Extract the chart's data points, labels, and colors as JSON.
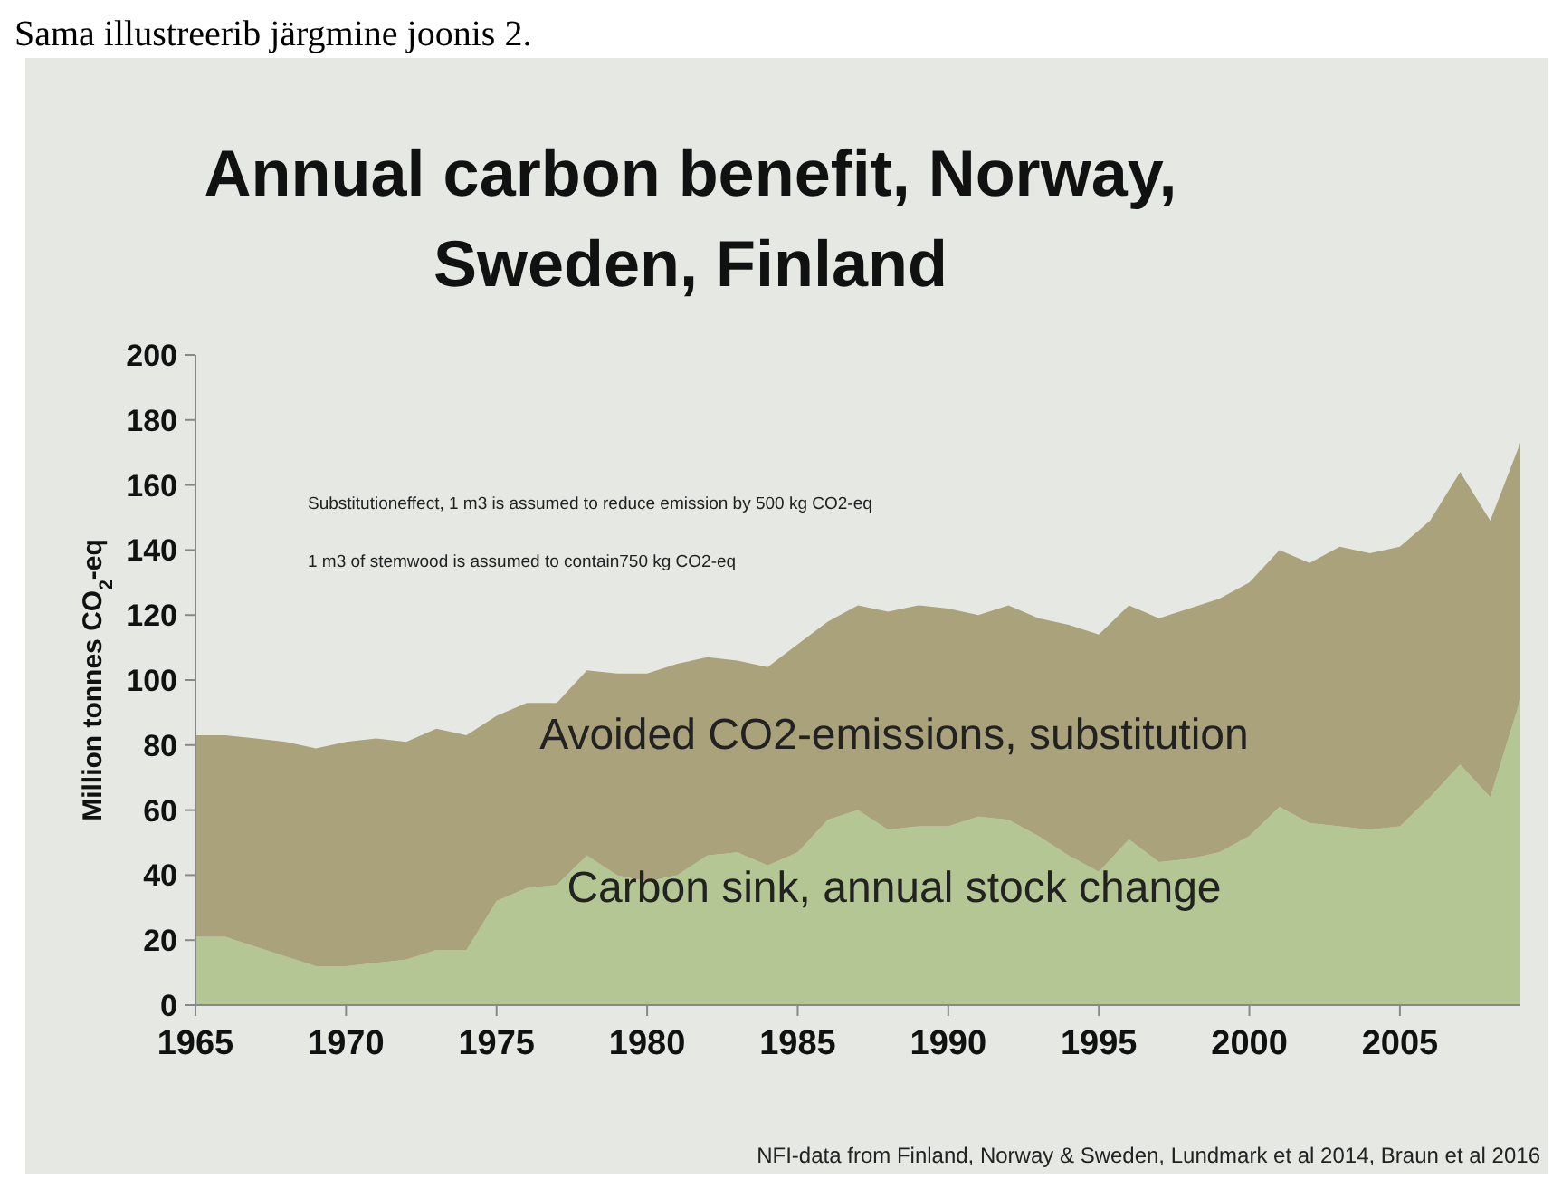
{
  "chart_data": {
    "type": "area",
    "stacked": true,
    "title": "Annual carbon benefit, Norway, Sweden, Finland",
    "ylabel": "Million tonnes CO$_{2}$-eq",
    "annotations": [
      "Sama illustreerib järgmine joonis 2.",
      "Substitutioneffect, 1 m3 is assumed to reduce emission by 500 kg CO2-eq",
      "1 m3 of stemwood is assumed to contain750 kg CO2-eq",
      "NFI-data from Finland, Norway & Sweden, Lundmark et al 2014, Braun et al 2016"
    ],
    "x": [
      1965,
      1966,
      1967,
      1968,
      1969,
      1970,
      1971,
      1972,
      1973,
      1974,
      1975,
      1976,
      1977,
      1978,
      1979,
      1980,
      1981,
      1982,
      1983,
      1984,
      1985,
      1986,
      1987,
      1988,
      1989,
      1990,
      1991,
      1992,
      1993,
      1994,
      1995,
      1996,
      1997,
      1998,
      1999,
      2000,
      2001,
      2002,
      2003,
      2004,
      2005,
      2006,
      2007,
      2008,
      2009
    ],
    "series": [
      {
        "name": "Carbon sink, annual stock change",
        "color": "#b3c693",
        "values": [
          21,
          21,
          18,
          15,
          12,
          12,
          13,
          14,
          17,
          17,
          32,
          36,
          37,
          46,
          40,
          38,
          40,
          46,
          47,
          43,
          47,
          57,
          60,
          54,
          55,
          55,
          58,
          57,
          52,
          46,
          41,
          51,
          44,
          45,
          47,
          52,
          61,
          56,
          55,
          54,
          55,
          64,
          74,
          64,
          94
        ]
      },
      {
        "name": "Avoided CO2-emissions, substitution",
        "color": "#aaa27a",
        "values": [
          62,
          62,
          64,
          66,
          67,
          69,
          69,
          67,
          68,
          66,
          57,
          57,
          56,
          57,
          62,
          64,
          65,
          61,
          59,
          61,
          64,
          61,
          63,
          67,
          68,
          67,
          62,
          66,
          67,
          71,
          73,
          72,
          75,
          77,
          78,
          78,
          79,
          80,
          86,
          85,
          86,
          85,
          90,
          85,
          79
        ]
      }
    ],
    "xlim": [
      1965,
      2009
    ],
    "xticks": [
      1965,
      1970,
      1975,
      1980,
      1985,
      1990,
      1995,
      2000,
      2005
    ],
    "ylim": [
      0,
      200
    ],
    "yticks": [
      0,
      20,
      40,
      60,
      80,
      100,
      120,
      140,
      160,
      180,
      200
    ],
    "legend": false
  }
}
